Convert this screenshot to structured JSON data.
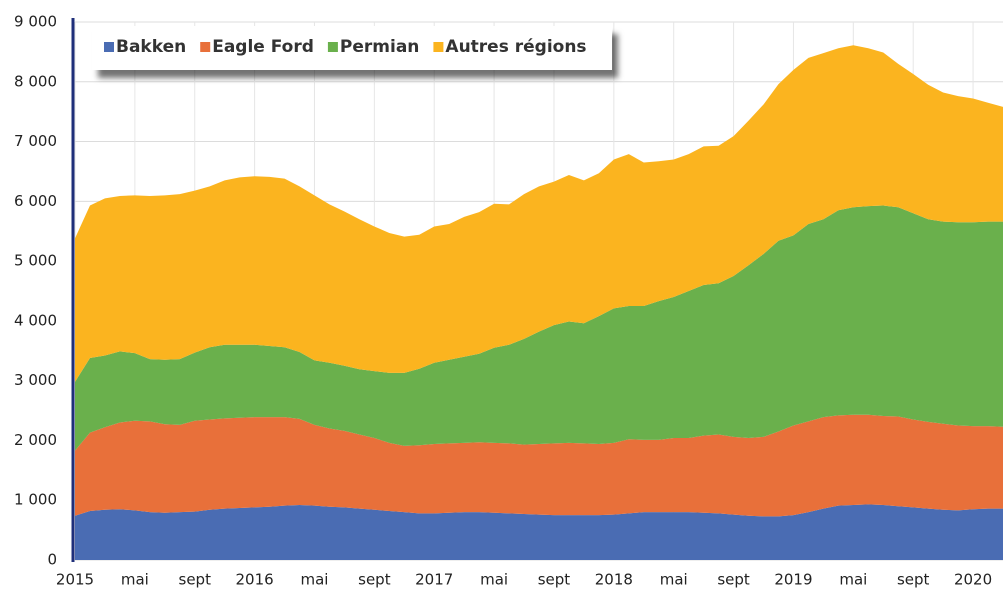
{
  "chart_data": {
    "type": "stacked_area",
    "categories": [
      "2015",
      null,
      null,
      null,
      "mai",
      null,
      null,
      null,
      "sept",
      null,
      null,
      null,
      "2016",
      null,
      null,
      null,
      "mai",
      null,
      null,
      null,
      "sept",
      null,
      null,
      null,
      "2017",
      null,
      null,
      null,
      "mai",
      null,
      null,
      null,
      "sept",
      null,
      null,
      null,
      "2018",
      null,
      null,
      null,
      "mai",
      null,
      null,
      null,
      "sept",
      null,
      null,
      null,
      "2019",
      null,
      null,
      null,
      "mai",
      null,
      null,
      null,
      "sept",
      null,
      null,
      null,
      "2020",
      null,
      null
    ],
    "series": [
      {
        "name": "Bakken",
        "color": "#4a6cb3",
        "values": [
          740,
          820,
          840,
          850,
          830,
          800,
          790,
          800,
          810,
          840,
          860,
          870,
          880,
          890,
          910,
          920,
          910,
          890,
          880,
          860,
          840,
          820,
          800,
          780,
          780,
          790,
          800,
          800,
          790,
          780,
          770,
          760,
          750,
          750,
          750,
          750,
          760,
          780,
          800,
          800,
          800,
          800,
          790,
          780,
          760,
          740,
          730,
          730,
          750,
          800,
          860,
          910,
          920,
          930,
          920,
          900,
          880,
          860,
          840,
          830,
          850,
          860,
          860
        ]
      },
      {
        "name": "Eagle Ford",
        "color": "#e8703a",
        "values": [
          1090,
          1310,
          1380,
          1450,
          1500,
          1520,
          1480,
          1460,
          1520,
          1510,
          1510,
          1510,
          1510,
          1500,
          1480,
          1440,
          1350,
          1310,
          1280,
          1240,
          1200,
          1140,
          1110,
          1140,
          1160,
          1160,
          1160,
          1170,
          1170,
          1170,
          1160,
          1180,
          1200,
          1210,
          1200,
          1190,
          1200,
          1240,
          1210,
          1210,
          1240,
          1240,
          1290,
          1320,
          1300,
          1300,
          1330,
          1420,
          1500,
          1520,
          1530,
          1510,
          1510,
          1500,
          1490,
          1500,
          1470,
          1450,
          1440,
          1420,
          1390,
          1380,
          1370
        ]
      },
      {
        "name": "Permian",
        "color": "#6ab04c",
        "values": [
          1150,
          1250,
          1200,
          1190,
          1130,
          1040,
          1080,
          1100,
          1140,
          1210,
          1230,
          1220,
          1210,
          1190,
          1170,
          1120,
          1080,
          1100,
          1090,
          1090,
          1120,
          1170,
          1220,
          1280,
          1360,
          1400,
          1440,
          1480,
          1590,
          1650,
          1770,
          1880,
          1980,
          2030,
          2010,
          2140,
          2250,
          2230,
          2240,
          2320,
          2360,
          2460,
          2520,
          2530,
          2690,
          2890,
          3060,
          3190,
          3180,
          3300,
          3310,
          3430,
          3470,
          3490,
          3520,
          3500,
          3450,
          3390,
          3380,
          3400,
          3410,
          3420,
          3430
        ]
      },
      {
        "name": "Autres régions",
        "color": "#fbb41f",
        "values": [
          2400,
          2550,
          2630,
          2600,
          2640,
          2730,
          2750,
          2760,
          2710,
          2690,
          2750,
          2800,
          2820,
          2830,
          2820,
          2770,
          2760,
          2650,
          2580,
          2510,
          2420,
          2340,
          2280,
          2240,
          2280,
          2270,
          2340,
          2370,
          2410,
          2350,
          2420,
          2430,
          2400,
          2450,
          2390,
          2390,
          2490,
          2540,
          2400,
          2340,
          2300,
          2290,
          2320,
          2300,
          2340,
          2420,
          2500,
          2620,
          2770,
          2780,
          2780,
          2710,
          2710,
          2640,
          2560,
          2400,
          2330,
          2250,
          2160,
          2110,
          2070,
          1990,
          1920
        ]
      }
    ],
    "ylim": [
      0,
      9000
    ],
    "yticks": [
      0,
      {
        "value": 1000,
        "label": "1 000"
      },
      {
        "value": 2000,
        "label": "2 000"
      },
      {
        "value": 3000,
        "label": "3 000"
      },
      {
        "value": 4000,
        "label": "4 000"
      },
      {
        "value": 5000,
        "label": "5 000"
      },
      {
        "value": 6000,
        "label": "6 000"
      },
      {
        "value": 7000,
        "label": "7 000"
      },
      {
        "value": 8000,
        "label": "8 000"
      },
      {
        "value": 9000,
        "label": "9 000"
      }
    ],
    "grid": true,
    "legend": "top-left"
  }
}
